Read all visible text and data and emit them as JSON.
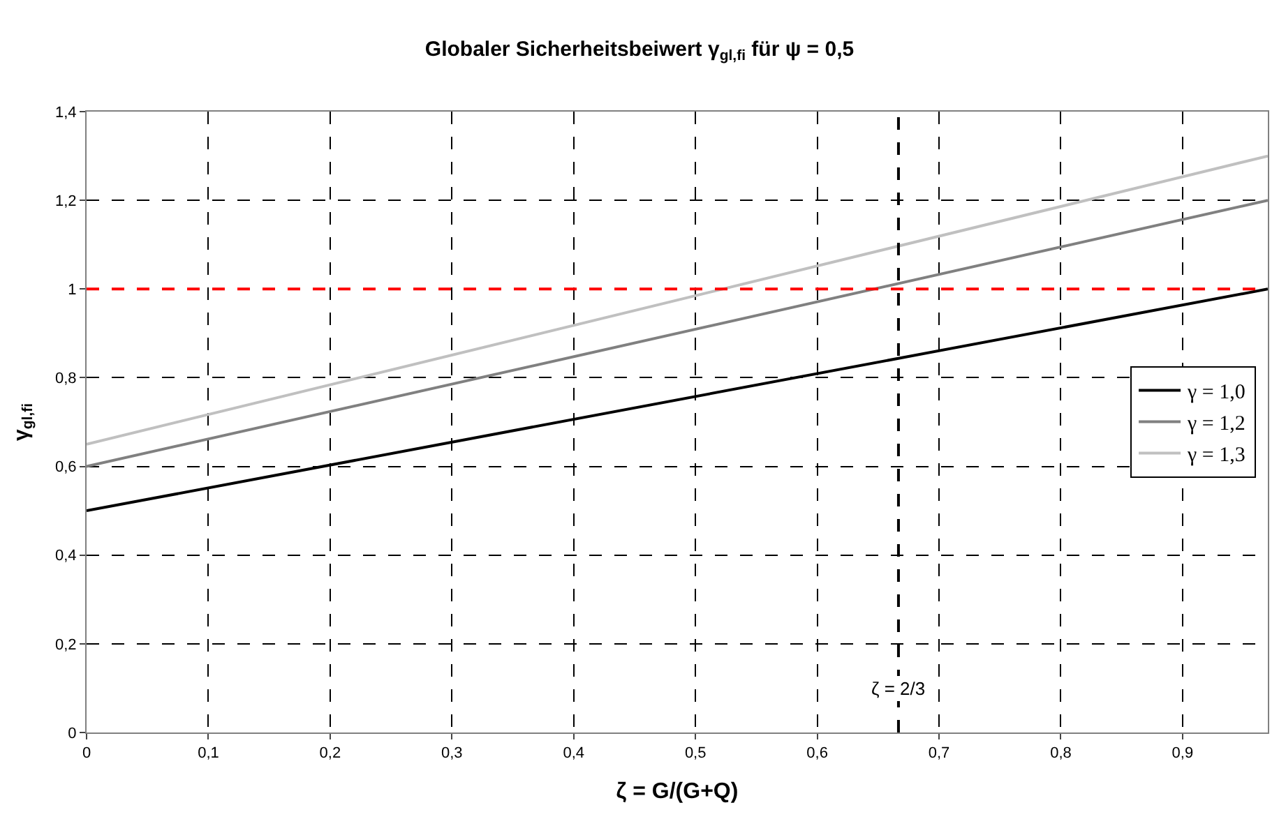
{
  "chart_data": {
    "type": "line",
    "title": "Globaler Sicherheitsbeiwert γ$_{gl,fi}$ für ψ = 0,5",
    "xlabel": "ζ = G/(G+Q)",
    "ylabel": "γ$_{gl,fi}$",
    "x": [
      0,
      0.97
    ],
    "series": [
      {
        "name": "γ = 1,0",
        "color": "#000000",
        "values": [
          0.5,
          1.0
        ]
      },
      {
        "name": "γ = 1,2",
        "color": "#808080",
        "values": [
          0.6,
          1.2
        ]
      },
      {
        "name": "γ = 1,3",
        "color": "#c0c0c0",
        "values": [
          0.65,
          1.3
        ]
      }
    ],
    "xlim": [
      0,
      0.97
    ],
    "xticks": [
      0,
      {
        "value": 0.1,
        "label": "0,1"
      },
      {
        "value": 0.2,
        "label": "0,2"
      },
      {
        "value": 0.3,
        "label": "0,3"
      },
      {
        "value": 0.4,
        "label": "0,4"
      },
      {
        "value": 0.5,
        "label": "0,5"
      },
      {
        "value": 0.6,
        "label": "0,6"
      },
      {
        "value": 0.7,
        "label": "0,7"
      },
      {
        "value": 0.8,
        "label": "0,8"
      },
      {
        "value": 0.9,
        "label": "0,9"
      }
    ],
    "ylim": [
      0,
      1.4
    ],
    "yticks": [
      0,
      {
        "value": 0.2,
        "label": "0,2"
      },
      {
        "value": 0.4,
        "label": "0,4"
      },
      {
        "value": 0.6,
        "label": "0,6"
      },
      {
        "value": 0.8,
        "label": "0,8"
      },
      1,
      {
        "value": 1.2,
        "label": "1,2"
      },
      {
        "value": 1.4,
        "label": "1,4"
      }
    ],
    "ref_lines": [
      {
        "axis": "y",
        "value": 1,
        "color": "#ff0000",
        "line_style": "dashed"
      },
      {
        "axis": "x",
        "value": 0.6667,
        "color": "#000000",
        "line_style": "dashed"
      }
    ],
    "annotations": [
      {
        "text": "ζ = 2/3",
        "x": 0.6667,
        "y": 0.1
      }
    ],
    "grid": true,
    "legend": "right",
    "marker": "none",
    "line_style": "solid"
  }
}
